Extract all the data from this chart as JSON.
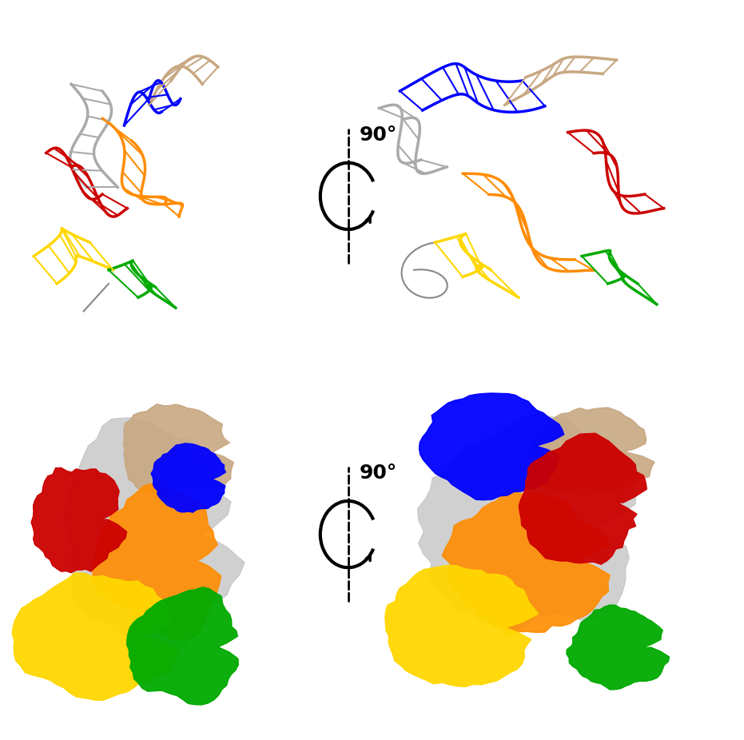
{
  "background_color": "#ffffff",
  "arrow_color": "#000000",
  "rotation_label": "90°",
  "rotation_label_fontsize": 18,
  "colors": {
    "blue": "#0000FF",
    "red": "#CC0000",
    "orange": "#FF8C00",
    "yellow": "#FFD700",
    "green": "#00AA00",
    "gray": "#AAAAAA",
    "white_gray": "#D0D0D0",
    "tan": "#C8A882"
  }
}
